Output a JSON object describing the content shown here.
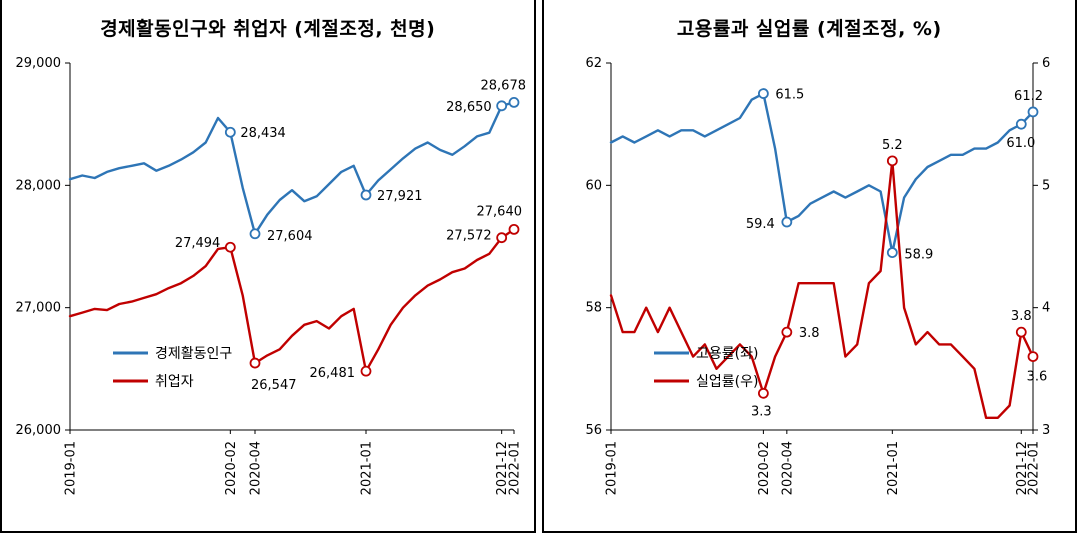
{
  "page": {
    "background": "#ffffff"
  },
  "chart_data": [
    {
      "type": "line",
      "title": "경제활동인구와 취업자 (계절조정, 천명)",
      "legend_position": "inside-bottom-left",
      "grid": false,
      "months": [
        "2019-01",
        "2019-02",
        "2019-03",
        "2019-04",
        "2019-05",
        "2019-06",
        "2019-07",
        "2019-08",
        "2019-09",
        "2019-10",
        "2019-11",
        "2019-12",
        "2020-01",
        "2020-02",
        "2020-03",
        "2020-04",
        "2020-05",
        "2020-06",
        "2020-07",
        "2020-08",
        "2020-09",
        "2020-10",
        "2020-11",
        "2020-12",
        "2021-01",
        "2021-02",
        "2021-03",
        "2021-04",
        "2021-05",
        "2021-06",
        "2021-07",
        "2021-08",
        "2021-09",
        "2021-10",
        "2021-11",
        "2021-12",
        "2022-01"
      ],
      "x_ticks": [
        "2019-01",
        "2020-02",
        "2020-04",
        "2021-01",
        "2021-12",
        "2022-01"
      ],
      "y_axis": {
        "min": 26000,
        "max": 29000,
        "ticks": [
          26000,
          27000,
          28000,
          29000
        ],
        "format": "thousands"
      },
      "y2_axis": null,
      "series": [
        {
          "name": "경제활동인구",
          "color": "#2e75b6",
          "axis": "y",
          "values": [
            28050,
            28080,
            28060,
            28110,
            28140,
            28160,
            28180,
            28120,
            28160,
            28210,
            28270,
            28350,
            28550,
            28434,
            27980,
            27604,
            27760,
            27880,
            27960,
            27870,
            27910,
            28010,
            28110,
            28160,
            27921,
            28040,
            28130,
            28220,
            28300,
            28350,
            28290,
            28250,
            28320,
            28400,
            28430,
            28650,
            28678
          ],
          "annotations": [
            {
              "x": "2020-02",
              "value": 28434,
              "label": "28,434",
              "anchor": "start",
              "dx": 10,
              "dy": 5
            },
            {
              "x": "2020-04",
              "value": 27604,
              "label": "27,604",
              "anchor": "start",
              "dx": 12,
              "dy": 6
            },
            {
              "x": "2021-01",
              "value": 27921,
              "label": "27,921",
              "anchor": "start",
              "dx": 11,
              "dy": 5
            },
            {
              "x": "2021-12",
              "value": 28650,
              "label": "28,650",
              "anchor": "end",
              "dx": -10,
              "dy": 5
            },
            {
              "x": "2022-01",
              "value": 28678,
              "label": "28,678",
              "anchor": "end",
              "dx": 12,
              "dy": -13
            }
          ]
        },
        {
          "name": "취업자",
          "color": "#c00000",
          "axis": "y",
          "values": [
            26930,
            26960,
            26990,
            26980,
            27030,
            27050,
            27080,
            27110,
            27160,
            27200,
            27260,
            27340,
            27480,
            27494,
            27100,
            26547,
            26610,
            26660,
            26770,
            26860,
            26890,
            26830,
            26930,
            26990,
            26481,
            26660,
            26860,
            27000,
            27100,
            27180,
            27230,
            27290,
            27320,
            27390,
            27440,
            27572,
            27640
          ],
          "annotations": [
            {
              "x": "2020-02",
              "value": 27494,
              "label": "27,494",
              "anchor": "end",
              "dx": -10,
              "dy": 0
            },
            {
              "x": "2020-04",
              "value": 26547,
              "label": "26,547",
              "anchor": "start",
              "dx": -4,
              "dy": 26
            },
            {
              "x": "2021-01",
              "value": 26481,
              "label": "26,481",
              "anchor": "end",
              "dx": -11,
              "dy": 6
            },
            {
              "x": "2021-12",
              "value": 27572,
              "label": "27,572",
              "anchor": "end",
              "dx": -10,
              "dy": 2
            },
            {
              "x": "2022-01",
              "value": 27640,
              "label": "27,640",
              "anchor": "end",
              "dx": 8,
              "dy": -14
            }
          ]
        }
      ]
    },
    {
      "type": "line",
      "title": "고용률과 실업률 (계절조정, %)",
      "legend_position": "inside-bottom-left",
      "grid": false,
      "months": [
        "2019-01",
        "2019-02",
        "2019-03",
        "2019-04",
        "2019-05",
        "2019-06",
        "2019-07",
        "2019-08",
        "2019-09",
        "2019-10",
        "2019-11",
        "2019-12",
        "2020-01",
        "2020-02",
        "2020-03",
        "2020-04",
        "2020-05",
        "2020-06",
        "2020-07",
        "2020-08",
        "2020-09",
        "2020-10",
        "2020-11",
        "2020-12",
        "2021-01",
        "2021-02",
        "2021-03",
        "2021-04",
        "2021-05",
        "2021-06",
        "2021-07",
        "2021-08",
        "2021-09",
        "2021-10",
        "2021-11",
        "2021-12",
        "2022-01"
      ],
      "x_ticks": [
        "2019-01",
        "2020-02",
        "2020-04",
        "2021-01",
        "2021-12",
        "2022-01"
      ],
      "y_axis": {
        "min": 56,
        "max": 62,
        "ticks": [
          56,
          58,
          60,
          62
        ],
        "format": "plain"
      },
      "y2_axis": {
        "min": 3,
        "max": 6,
        "ticks": [
          3,
          4,
          5,
          6
        ],
        "format": "plain"
      },
      "series": [
        {
          "name": "고용률(좌)",
          "color": "#2e75b6",
          "axis": "y",
          "values": [
            60.7,
            60.8,
            60.7,
            60.8,
            60.9,
            60.8,
            60.9,
            60.9,
            60.8,
            60.9,
            61.0,
            61.1,
            61.4,
            61.5,
            60.6,
            59.4,
            59.5,
            59.7,
            59.8,
            59.9,
            59.8,
            59.9,
            60.0,
            59.9,
            58.9,
            59.8,
            60.1,
            60.3,
            60.4,
            60.5,
            60.5,
            60.6,
            60.6,
            60.7,
            60.9,
            61.0,
            61.2
          ],
          "annotations": [
            {
              "x": "2020-02",
              "value": 61.5,
              "label": "61.5",
              "anchor": "start",
              "dx": 12,
              "dy": 5
            },
            {
              "x": "2020-04",
              "value": 59.4,
              "label": "59.4",
              "anchor": "end",
              "dx": -12,
              "dy": 6
            },
            {
              "x": "2021-01",
              "value": 58.9,
              "label": "58.9",
              "anchor": "start",
              "dx": 12,
              "dy": 6
            },
            {
              "x": "2021-12",
              "value": 61.0,
              "label": "61.0",
              "anchor": "end",
              "dx": 14,
              "dy": 23
            },
            {
              "x": "2022-01",
              "value": 61.2,
              "label": "61.2",
              "anchor": "end",
              "dx": 10,
              "dy": -12
            }
          ]
        },
        {
          "name": "실업률(우)",
          "color": "#c00000",
          "axis": "y2",
          "values": [
            4.1,
            3.8,
            3.8,
            4.0,
            3.8,
            4.0,
            3.8,
            3.6,
            3.7,
            3.5,
            3.6,
            3.7,
            3.6,
            3.3,
            3.6,
            3.8,
            4.2,
            4.2,
            4.2,
            4.2,
            3.6,
            3.7,
            4.2,
            4.3,
            5.2,
            4.0,
            3.7,
            3.8,
            3.7,
            3.7,
            3.6,
            3.5,
            3.1,
            3.1,
            3.2,
            3.8,
            3.6
          ],
          "annotations": [
            {
              "x": "2020-02",
              "value": 3.3,
              "label": "3.3",
              "anchor": "middle",
              "dx": -2,
              "dy": 22
            },
            {
              "x": "2020-04",
              "value": 3.8,
              "label": "3.8",
              "anchor": "start",
              "dx": 12,
              "dy": 5
            },
            {
              "x": "2021-01",
              "value": 5.2,
              "label": "5.2",
              "anchor": "middle",
              "dx": 0,
              "dy": -12
            },
            {
              "x": "2021-12",
              "value": 3.8,
              "label": "3.8",
              "anchor": "middle",
              "dx": 0,
              "dy": -12
            },
            {
              "x": "2022-01",
              "value": 3.6,
              "label": "3.6",
              "anchor": "middle",
              "dx": 4,
              "dy": 24
            }
          ]
        }
      ]
    }
  ]
}
